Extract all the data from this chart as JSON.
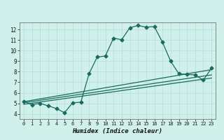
{
  "title": "",
  "xlabel": "Humidex (Indice chaleur)",
  "bg_color": "#cff0eb",
  "line_color": "#1a6b5e",
  "xlim": [
    -0.5,
    23.5
  ],
  "ylim": [
    3.5,
    12.7
  ],
  "xticks": [
    0,
    1,
    2,
    3,
    4,
    5,
    6,
    7,
    8,
    9,
    10,
    11,
    12,
    13,
    14,
    15,
    16,
    17,
    18,
    19,
    20,
    21,
    22,
    23
  ],
  "yticks": [
    4,
    5,
    6,
    7,
    8,
    9,
    10,
    11,
    12
  ],
  "main_series": [
    [
      0,
      5.2
    ],
    [
      1,
      4.85
    ],
    [
      2,
      5.0
    ],
    [
      3,
      4.75
    ],
    [
      4,
      4.5
    ],
    [
      5,
      4.1
    ],
    [
      6,
      5.05
    ],
    [
      7,
      5.1
    ],
    [
      8,
      7.8
    ],
    [
      9,
      9.4
    ],
    [
      10,
      9.5
    ],
    [
      11,
      11.2
    ],
    [
      12,
      11.05
    ],
    [
      13,
      12.2
    ],
    [
      14,
      12.4
    ],
    [
      15,
      12.25
    ],
    [
      16,
      12.3
    ],
    [
      17,
      10.8
    ],
    [
      18,
      9.0
    ],
    [
      19,
      7.8
    ],
    [
      20,
      7.75
    ],
    [
      21,
      7.7
    ],
    [
      22,
      7.2
    ],
    [
      23,
      8.35
    ]
  ],
  "line1": [
    [
      0,
      5.15
    ],
    [
      23,
      8.2
    ]
  ],
  "line2": [
    [
      0,
      5.05
    ],
    [
      23,
      7.7
    ]
  ],
  "line3": [
    [
      0,
      4.9
    ],
    [
      23,
      7.4
    ]
  ]
}
